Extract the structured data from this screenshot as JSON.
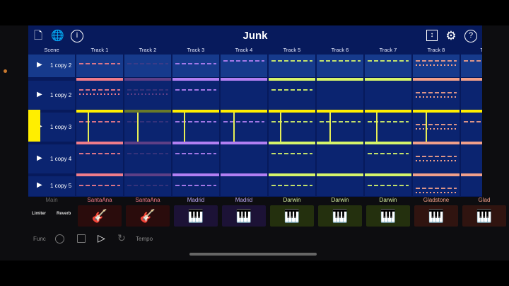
{
  "header": {
    "title": "Junk",
    "icons": [
      "document-icon",
      "globe-icon",
      "info-icon",
      "resize-icon",
      "gear-icon",
      "help-icon"
    ]
  },
  "columns": {
    "scene": "Scene",
    "tracks": [
      "Track 1",
      "Track 2",
      "Track 3",
      "Track 4",
      "Track 5",
      "Track 6",
      "Track 7",
      "Track 8",
      "Tra"
    ]
  },
  "track_colors": [
    "#f07c8a",
    "#5e3f86",
    "#b27ff2",
    "#b27ff2",
    "#d6f56a",
    "#d6f56a",
    "#d6f56a",
    "#f2a08a",
    "#f2a08a"
  ],
  "selected_color": "#ffee00",
  "scenes": [
    {
      "label": "1 copy 2"
    },
    {
      "label": "1 copy 2"
    },
    {
      "label": "1 copy 3"
    },
    {
      "label": "1 copy 4"
    },
    {
      "label": "1 copy 5"
    }
  ],
  "mixer": {
    "main_label": "Main",
    "limiter": "Limiter",
    "reverb": "Reverb"
  },
  "instruments": [
    {
      "name": "SantaAna",
      "color": "#f07c8a",
      "bg": "#2a0c0c",
      "icon": "guitar-icon"
    },
    {
      "name": "SantaAna",
      "color": "#f07c8a",
      "bg": "#2a0c0c",
      "icon": "guitar-icon"
    },
    {
      "name": "Madrid",
      "color": "#b9a6f2",
      "bg": "#1c1236",
      "icon": "synth-icon"
    },
    {
      "name": "Madrid",
      "color": "#b9a6f2",
      "bg": "#1c1236",
      "icon": "synth-icon"
    },
    {
      "name": "Darwin",
      "color": "#d6f0a0",
      "bg": "#24300e",
      "icon": "keyboard-icon"
    },
    {
      "name": "Darwin",
      "color": "#d6f0a0",
      "bg": "#24300e",
      "icon": "keyboard-icon"
    },
    {
      "name": "Darwin",
      "color": "#d6f0a0",
      "bg": "#24300e",
      "icon": "keyboard-icon"
    },
    {
      "name": "Gladstone",
      "color": "#f2a08a",
      "bg": "#301410",
      "icon": "drum-machine-icon"
    },
    {
      "name": "Glad",
      "color": "#f2a08a",
      "bg": "#301410",
      "icon": "drum-machine-icon"
    }
  ],
  "transport": {
    "func": "Func",
    "tempo": "Tempo"
  }
}
